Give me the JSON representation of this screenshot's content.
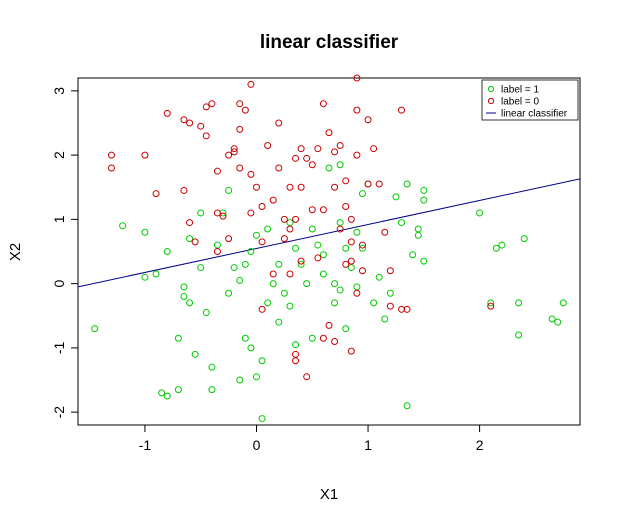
{
  "chart_data": {
    "type": "scatter",
    "title": "linear classifier",
    "xlabel": "X1",
    "ylabel": "X2",
    "xlim": [
      -1.6,
      2.9
    ],
    "ylim": [
      -2.2,
      3.2
    ],
    "xticks": [
      -1,
      0,
      1,
      2
    ],
    "yticks": [
      -2,
      -1,
      0,
      1,
      2,
      3
    ],
    "grid": false,
    "legend": "top-right",
    "legend_entries": [
      "label = 1",
      "label = 0",
      "linear classifier"
    ],
    "colors": {
      "label1": "#00cc00",
      "label0": "#cc0000",
      "line": "#00008b"
    },
    "line": {
      "x": [
        -1.6,
        2.9
      ],
      "y": [
        -0.05,
        1.63
      ]
    },
    "series": [
      {
        "name": "label = 1",
        "color": "#00cc00",
        "points": [
          [
            -1.45,
            -0.7
          ],
          [
            -1.2,
            0.9
          ],
          [
            -1.0,
            0.8
          ],
          [
            -1.0,
            0.1
          ],
          [
            -0.9,
            0.15
          ],
          [
            -0.8,
            0.5
          ],
          [
            -0.85,
            -1.7
          ],
          [
            -0.8,
            -1.75
          ],
          [
            -0.7,
            -1.65
          ],
          [
            -0.7,
            -0.85
          ],
          [
            -0.65,
            -0.05
          ],
          [
            -0.65,
            -0.2
          ],
          [
            -0.6,
            -0.3
          ],
          [
            -0.6,
            0.7
          ],
          [
            -0.55,
            -1.1
          ],
          [
            -0.5,
            0.25
          ],
          [
            -0.5,
            1.1
          ],
          [
            -0.45,
            -0.45
          ],
          [
            -0.4,
            -1.3
          ],
          [
            -0.4,
            -1.65
          ],
          [
            -0.35,
            0.6
          ],
          [
            -0.3,
            1.1
          ],
          [
            -0.25,
            1.45
          ],
          [
            -0.25,
            -0.15
          ],
          [
            -0.2,
            0.25
          ],
          [
            -0.15,
            -1.5
          ],
          [
            -0.15,
            0.05
          ],
          [
            -0.1,
            -0.85
          ],
          [
            -0.05,
            0.5
          ],
          [
            -0.05,
            -1.0
          ],
          [
            0.0,
            0.75
          ],
          [
            0.0,
            -1.45
          ],
          [
            0.05,
            -1.2
          ],
          [
            0.05,
            -2.1
          ],
          [
            0.1,
            -0.3
          ],
          [
            0.1,
            0.85
          ],
          [
            0.15,
            0.0
          ],
          [
            0.2,
            -0.6
          ],
          [
            0.25,
            -0.15
          ],
          [
            0.3,
            0.95
          ],
          [
            0.3,
            -0.35
          ],
          [
            0.35,
            0.55
          ],
          [
            0.35,
            -0.95
          ],
          [
            0.4,
            0.3
          ],
          [
            0.45,
            0.0
          ],
          [
            0.5,
            -0.85
          ],
          [
            0.5,
            0.85
          ],
          [
            0.55,
            0.6
          ],
          [
            0.6,
            0.15
          ],
          [
            0.6,
            0.45
          ],
          [
            0.65,
            1.8
          ],
          [
            0.7,
            0.0
          ],
          [
            0.7,
            -0.3
          ],
          [
            0.75,
            0.95
          ],
          [
            0.75,
            1.85
          ],
          [
            0.8,
            0.55
          ],
          [
            0.8,
            -0.7
          ],
          [
            0.85,
            0.25
          ],
          [
            0.9,
            0.8
          ],
          [
            0.9,
            -0.05
          ],
          [
            0.95,
            0.55
          ],
          [
            1.0,
            1.55
          ],
          [
            1.05,
            -0.3
          ],
          [
            1.1,
            0.1
          ],
          [
            1.15,
            -0.55
          ],
          [
            1.2,
            -0.15
          ],
          [
            1.25,
            1.35
          ],
          [
            1.3,
            0.95
          ],
          [
            1.35,
            1.55
          ],
          [
            1.4,
            0.45
          ],
          [
            1.45,
            0.85
          ],
          [
            1.45,
            0.75
          ],
          [
            1.5,
            1.45
          ],
          [
            1.5,
            1.3
          ],
          [
            1.5,
            0.35
          ],
          [
            1.35,
            -1.9
          ],
          [
            2.0,
            1.1
          ],
          [
            2.1,
            -0.3
          ],
          [
            2.15,
            0.55
          ],
          [
            2.2,
            0.6
          ],
          [
            2.35,
            -0.3
          ],
          [
            2.35,
            -0.8
          ],
          [
            2.4,
            0.7
          ],
          [
            2.65,
            -0.55
          ],
          [
            2.7,
            -0.6
          ],
          [
            2.75,
            -0.3
          ],
          [
            0.95,
            1.4
          ],
          [
            0.75,
            -0.1
          ],
          [
            0.2,
            0.3
          ],
          [
            -0.1,
            0.3
          ]
        ]
      },
      {
        "name": "label = 0",
        "color": "#cc0000",
        "points": [
          [
            -1.3,
            2.0
          ],
          [
            -1.3,
            1.8
          ],
          [
            -1.0,
            2.0
          ],
          [
            -0.9,
            1.4
          ],
          [
            -0.8,
            2.65
          ],
          [
            -0.65,
            2.55
          ],
          [
            -0.6,
            2.5
          ],
          [
            -0.65,
            1.45
          ],
          [
            -0.6,
            0.95
          ],
          [
            -0.55,
            0.65
          ],
          [
            -0.5,
            2.45
          ],
          [
            -0.45,
            2.75
          ],
          [
            -0.45,
            2.3
          ],
          [
            -0.4,
            2.8
          ],
          [
            -0.35,
            1.75
          ],
          [
            -0.35,
            1.1
          ],
          [
            -0.35,
            0.5
          ],
          [
            -0.3,
            1.05
          ],
          [
            -0.25,
            2.0
          ],
          [
            -0.2,
            2.05
          ],
          [
            -0.2,
            2.1
          ],
          [
            -0.15,
            2.8
          ],
          [
            -0.15,
            2.4
          ],
          [
            -0.15,
            1.8
          ],
          [
            -0.1,
            2.7
          ],
          [
            -0.05,
            3.1
          ],
          [
            -0.05,
            1.7
          ],
          [
            -0.05,
            1.1
          ],
          [
            0.0,
            1.5
          ],
          [
            0.05,
            0.65
          ],
          [
            0.05,
            1.2
          ],
          [
            0.05,
            -0.4
          ],
          [
            0.1,
            2.15
          ],
          [
            0.15,
            1.3
          ],
          [
            0.15,
            0.15
          ],
          [
            0.2,
            2.5
          ],
          [
            0.2,
            1.8
          ],
          [
            0.25,
            0.7
          ],
          [
            0.3,
            1.5
          ],
          [
            0.3,
            0.85
          ],
          [
            0.35,
            1.95
          ],
          [
            0.35,
            1.0
          ],
          [
            0.35,
            -1.1
          ],
          [
            0.35,
            -1.2
          ],
          [
            0.4,
            2.1
          ],
          [
            0.4,
            1.5
          ],
          [
            0.4,
            0.35
          ],
          [
            0.45,
            1.95
          ],
          [
            0.45,
            -1.45
          ],
          [
            0.5,
            1.85
          ],
          [
            0.5,
            1.15
          ],
          [
            0.55,
            0.4
          ],
          [
            0.55,
            2.1
          ],
          [
            0.6,
            2.8
          ],
          [
            0.6,
            1.15
          ],
          [
            0.65,
            2.35
          ],
          [
            0.65,
            -0.65
          ],
          [
            0.7,
            2.05
          ],
          [
            0.7,
            1.5
          ],
          [
            0.75,
            0.85
          ],
          [
            0.75,
            2.15
          ],
          [
            0.8,
            1.6
          ],
          [
            0.8,
            0.3
          ],
          [
            0.85,
            0.65
          ],
          [
            0.85,
            1.0
          ],
          [
            0.85,
            -1.05
          ],
          [
            0.9,
            2.0
          ],
          [
            0.9,
            2.7
          ],
          [
            0.9,
            3.2
          ],
          [
            0.9,
            -0.15
          ],
          [
            0.95,
            0.2
          ],
          [
            1.0,
            1.55
          ],
          [
            1.0,
            2.55
          ],
          [
            1.05,
            2.1
          ],
          [
            1.1,
            1.55
          ],
          [
            1.15,
            0.8
          ],
          [
            1.2,
            0.2
          ],
          [
            1.2,
            -0.35
          ],
          [
            1.3,
            2.7
          ],
          [
            1.3,
            -0.4
          ],
          [
            1.35,
            -0.4
          ],
          [
            0.7,
            -0.9
          ],
          [
            0.6,
            -0.85
          ],
          [
            0.85,
            0.35
          ],
          [
            0.95,
            0.6
          ],
          [
            2.1,
            -0.35
          ],
          [
            0.3,
            0.15
          ],
          [
            -0.25,
            0.7
          ],
          [
            0.25,
            1.0
          ],
          [
            0.8,
            1.2
          ]
        ]
      }
    ]
  }
}
